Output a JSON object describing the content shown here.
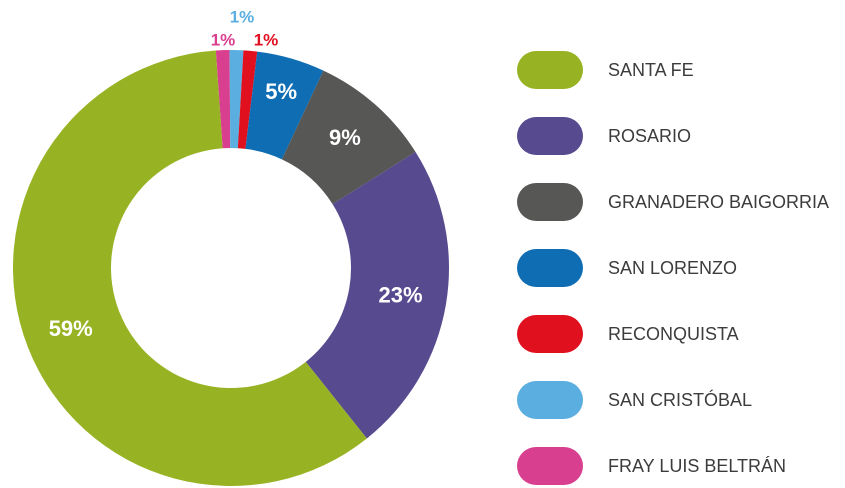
{
  "chart_data": {
    "type": "donut",
    "categories": [
      "SANTA FE",
      "ROSARIO",
      "GRANADERO BAIGORRIA",
      "SAN LORENZO",
      "RECONQUISTA",
      "SAN CRISTÓBAL",
      "FRAY LUIS BELTRÁN"
    ],
    "values": [
      59,
      23,
      9,
      5,
      1,
      1,
      1
    ],
    "value_labels": [
      "59%",
      "23%",
      "9%",
      "5%",
      "1%",
      "1%",
      "1%"
    ],
    "colors": [
      "#97b323",
      "#574a8f",
      "#575756",
      "#0f6db4",
      "#e0101f",
      "#5aaee0",
      "#d93f8f"
    ],
    "legend": "right"
  }
}
